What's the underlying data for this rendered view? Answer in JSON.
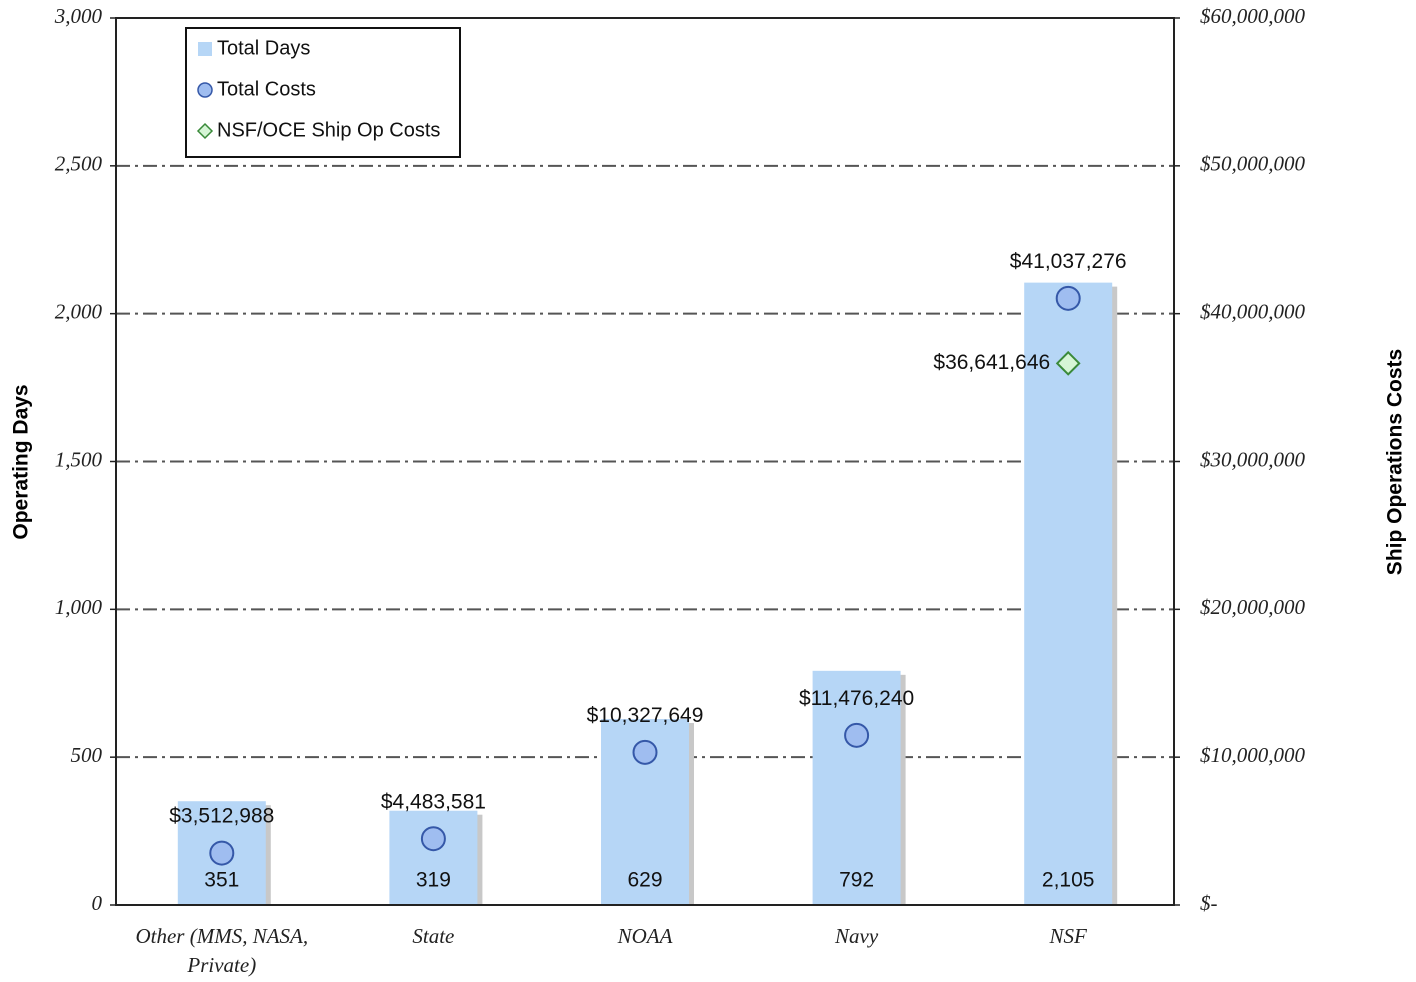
{
  "chart_data": {
    "type": "bar",
    "categories": [
      "Other (MMS, NASA, Private)",
      "State",
      "NOAA",
      "Navy",
      "NSF"
    ],
    "series": [
      {
        "name": "Total Days",
        "type": "bar",
        "color": "#b6d6f6",
        "values": [
          351,
          319,
          629,
          792,
          2105
        ],
        "value_labels": [
          "351",
          "319",
          "629",
          "792",
          "2,105"
        ]
      },
      {
        "name": "Total Costs",
        "type": "circle",
        "axis": "y2",
        "color": "#9fbdf0",
        "values": [
          3512988,
          4483581,
          10327649,
          11476240,
          41037276
        ],
        "value_labels": [
          "$3,512,988",
          "$4,483,581",
          "$10,327,649",
          "$11,476,240",
          "$41,037,276"
        ]
      },
      {
        "name": "NSF/OCE Ship Op Costs",
        "type": "diamond",
        "axis": "y2",
        "color": "#d6f5d6",
        "values": [
          null,
          null,
          null,
          null,
          36641646
        ],
        "value_labels": [
          null,
          null,
          null,
          null,
          "$36,641,646"
        ]
      }
    ],
    "ylabel": "Operating Days",
    "y2label": "Ship Operations Costs",
    "ylim": [
      0,
      3000
    ],
    "yticks": [
      0,
      500,
      {
        "value": 1000,
        "label": "1,000"
      },
      {
        "value": 1500,
        "label": "1,500"
      },
      {
        "value": 2000,
        "label": "2,000"
      },
      {
        "value": 2500,
        "label": "2,500"
      },
      {
        "value": 3000,
        "label": "3,000"
      }
    ],
    "y2lim": [
      0,
      60000000
    ],
    "y2ticks": [
      {
        "value": 0,
        "label": "$-"
      },
      {
        "value": 10000000,
        "label": "$10,000,000"
      },
      {
        "value": 20000000,
        "label": "$20,000,000"
      },
      {
        "value": 30000000,
        "label": "$30,000,000"
      },
      {
        "value": 40000000,
        "label": "$40,000,000"
      },
      {
        "value": 50000000,
        "label": "$50,000,000"
      },
      {
        "value": 60000000,
        "label": "$60,000,000"
      }
    ],
    "grid": true,
    "legend": "upper left"
  }
}
